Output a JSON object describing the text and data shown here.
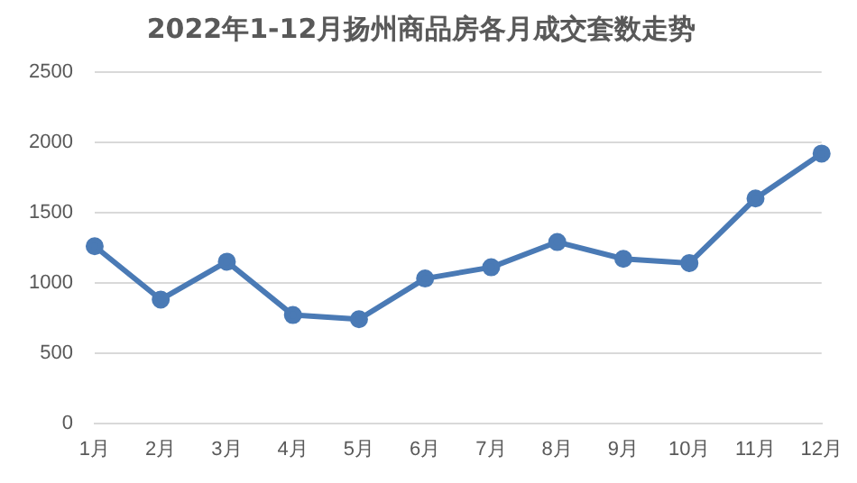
{
  "chart_data": {
    "type": "line",
    "title": "2022年1-12月扬州商品房各月成交套数走势",
    "categories": [
      "1月",
      "2月",
      "3月",
      "4月",
      "5月",
      "6月",
      "7月",
      "8月",
      "9月",
      "10月",
      "11月",
      "12月"
    ],
    "series": [
      {
        "color": "#4a7ab5",
        "values": [
          1260,
          880,
          1150,
          770,
          740,
          1030,
          1110,
          1290,
          1170,
          1140,
          1600,
          1920
        ]
      }
    ],
    "ylim": [
      0,
      2500
    ],
    "yticks": [
      0,
      500,
      1000,
      1500,
      2000,
      2500
    ],
    "grid": "y",
    "legend": false,
    "marker": "circle",
    "line_style": "solid"
  }
}
